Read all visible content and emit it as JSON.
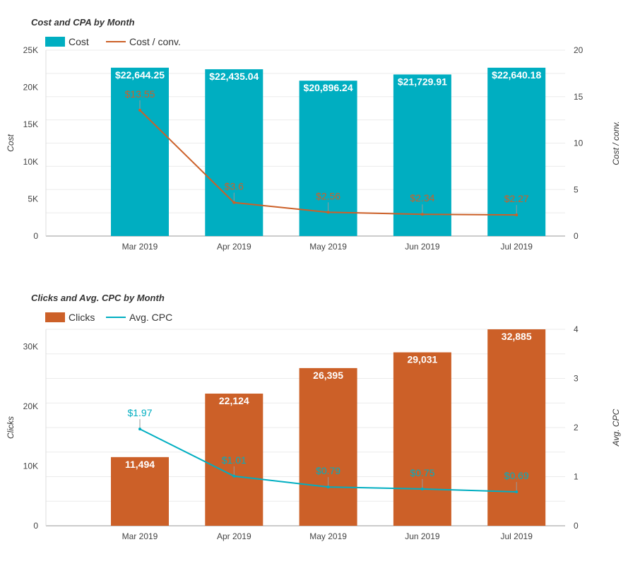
{
  "chart_data": [
    {
      "type": "bar+line",
      "title": "Cost and CPA by Month",
      "categories": [
        "Mar 2019",
        "Apr 2019",
        "May 2019",
        "Jun 2019",
        "Jul 2019"
      ],
      "series": [
        {
          "name": "Cost",
          "type": "bar",
          "axis": "left",
          "color": "#00AEC1",
          "values": [
            22644.25,
            22435.04,
            20896.24,
            21729.91,
            22640.18
          ],
          "labels": [
            "$22,644.25",
            "$22,435.04",
            "$20,896.24",
            "$21,729.91",
            "$22,640.18"
          ]
        },
        {
          "name": "Cost / conv.",
          "type": "line",
          "axis": "right",
          "color": "#CC6028",
          "values": [
            13.55,
            3.6,
            2.56,
            2.34,
            2.27
          ],
          "labels": [
            "$13.55",
            "$3.6",
            "$2.56",
            "$2.34",
            "$2.27"
          ]
        }
      ],
      "ylabel": "Cost",
      "y2label": "Cost / conv.",
      "ylim": [
        0,
        25000
      ],
      "yticks": [
        "0",
        "5K",
        "10K",
        "15K",
        "20K",
        "25K"
      ],
      "y2lim": [
        0,
        20
      ],
      "y2ticks": [
        "0",
        "5",
        "10",
        "15",
        "20"
      ],
      "grid": true,
      "legend": "top-left"
    },
    {
      "type": "bar+line",
      "title": "Clicks and Avg. CPC by Month",
      "categories": [
        "Mar 2019",
        "Apr 2019",
        "May 2019",
        "Jun 2019",
        "Jul 2019"
      ],
      "series": [
        {
          "name": "Clicks",
          "type": "bar",
          "axis": "left",
          "color": "#CC6028",
          "values": [
            11494,
            22124,
            26395,
            29031,
            32885
          ],
          "labels": [
            "11,494",
            "22,124",
            "26,395",
            "29,031",
            "32,885"
          ]
        },
        {
          "name": "Avg. CPC",
          "type": "line",
          "axis": "right",
          "color": "#00AEC1",
          "values": [
            1.97,
            1.01,
            0.79,
            0.75,
            0.69
          ],
          "labels": [
            "$1.97",
            "$1.01",
            "$0.79",
            "$0.75",
            "$0.69"
          ]
        }
      ],
      "ylabel": "Clicks",
      "y2label": "Avg. CPC",
      "ylim": [
        0,
        32885
      ],
      "yticks": [
        "0",
        "10K",
        "20K",
        "30K"
      ],
      "ytick_values": [
        0,
        10000,
        20000,
        30000
      ],
      "y2lim": [
        0,
        4
      ],
      "y2ticks": [
        "0",
        "1",
        "2",
        "3",
        "4"
      ],
      "grid": true,
      "legend": "top-left"
    }
  ]
}
